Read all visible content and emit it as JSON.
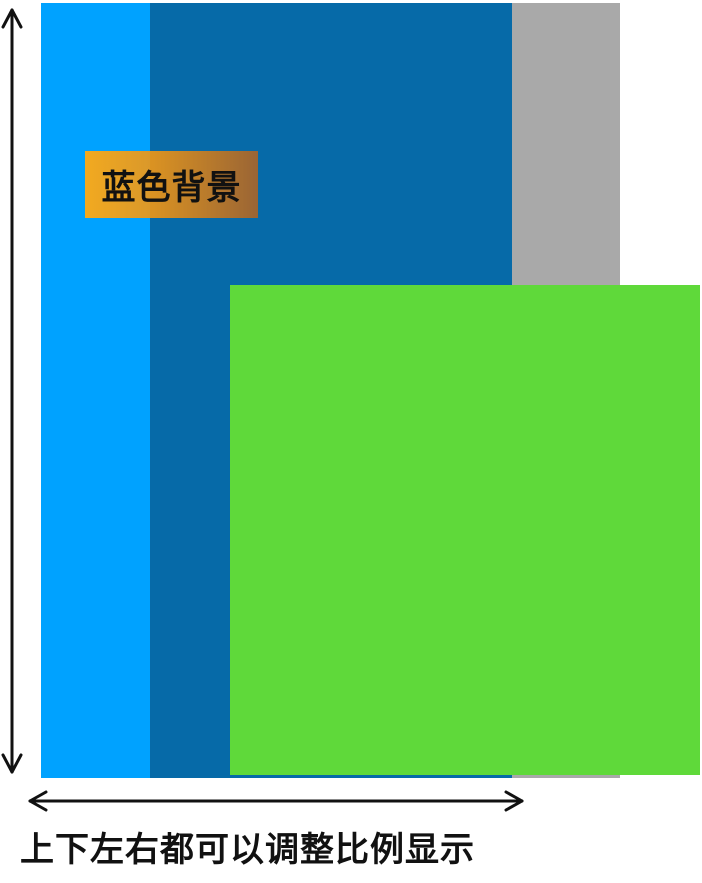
{
  "colors": {
    "light_blue": "#00a2ff",
    "dark_blue": "#066aa8",
    "gray": "#a9a9a9",
    "green": "#5fd93a",
    "arrow": "#111111"
  },
  "label": {
    "text": "蓝色背景"
  },
  "caption": {
    "text": "上下左右都可以调整比例显示"
  }
}
